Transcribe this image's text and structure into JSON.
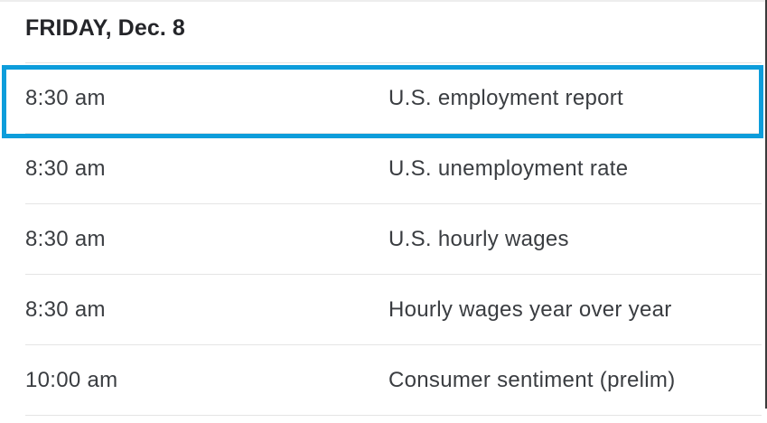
{
  "calendar": {
    "day_header": "FRIDAY, Dec. 8",
    "rows": [
      {
        "time": "8:30 am",
        "event": "U.S. employment report",
        "highlighted": true
      },
      {
        "time": "8:30 am",
        "event": "U.S. unemployment rate",
        "highlighted": false
      },
      {
        "time": "8:30 am",
        "event": "U.S. hourly wages",
        "highlighted": false
      },
      {
        "time": "8:30 am",
        "event": "Hourly wages year over year",
        "highlighted": false
      },
      {
        "time": "10:00 am",
        "event": "Consumer sentiment (prelim)",
        "highlighted": false
      }
    ]
  },
  "annotation": {
    "type": "highlight-box",
    "target_row_index": 0
  },
  "colors": {
    "highlight_border": "#0d9ddb",
    "divider": "#e5e5e5",
    "row_text": "#3a3d41",
    "header_text": "#242529",
    "edge_line": "#3b3b3b",
    "background": "#ffffff"
  }
}
